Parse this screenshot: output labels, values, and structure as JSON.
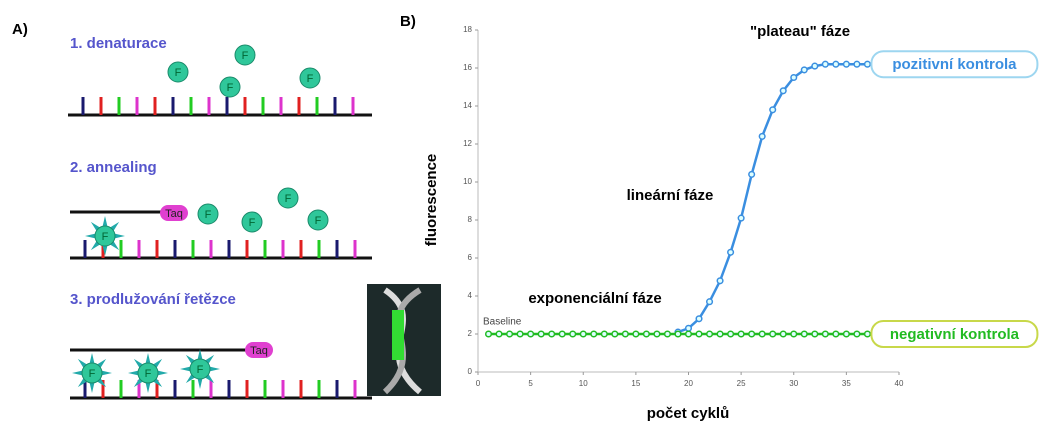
{
  "panel_a": {
    "label": "A)",
    "bead_label": "F",
    "taq_label": "Taq",
    "steps": [
      "1. denaturace",
      "2. annealing",
      "3. prodlužování řetězce"
    ]
  },
  "chart_data": {
    "type": "line",
    "panel_label": "B)",
    "xlabel": "počet cyklů",
    "ylabel": "fluorescence",
    "xlim": [
      0,
      40
    ],
    "xticks": [
      0,
      5,
      10,
      15,
      20,
      25,
      30,
      35,
      40
    ],
    "ylim": [
      0,
      18
    ],
    "yticks": [
      0,
      2,
      4,
      6,
      8,
      10,
      12,
      14,
      16,
      18
    ],
    "annotations": [
      "\"plateau\" fáze",
      "lineární fáze",
      "exponenciální fáze",
      "Baseline"
    ],
    "series": [
      {
        "name": "pozitivní kontrola",
        "color": "#3a8ee0",
        "x": [
          19,
          20,
          21,
          22,
          23,
          24,
          25,
          26,
          27,
          28,
          29,
          30,
          31,
          32,
          33,
          34,
          35,
          36,
          37
        ],
        "values": [
          2.1,
          2.3,
          2.8,
          3.7,
          4.8,
          6.3,
          8.1,
          10.4,
          12.4,
          13.8,
          14.8,
          15.5,
          15.9,
          16.1,
          16.2,
          16.2,
          16.2,
          16.2,
          16.2
        ]
      },
      {
        "name": "negativní kontrola",
        "color": "#22bb22",
        "x": [
          1,
          2,
          3,
          4,
          5,
          6,
          7,
          8,
          9,
          10,
          11,
          12,
          13,
          14,
          15,
          16,
          17,
          18,
          19,
          20,
          21,
          22,
          23,
          24,
          25,
          26,
          27,
          28,
          29,
          30,
          31,
          32,
          33,
          34,
          35,
          36,
          37
        ],
        "values": [
          2,
          2,
          2,
          2,
          2,
          2,
          2,
          2,
          2,
          2,
          2,
          2,
          2,
          2,
          2,
          2,
          2,
          2,
          2,
          2,
          2,
          2,
          2,
          2,
          2,
          2,
          2,
          2,
          2,
          2,
          2,
          2,
          2,
          2,
          2,
          2,
          2
        ]
      }
    ]
  }
}
